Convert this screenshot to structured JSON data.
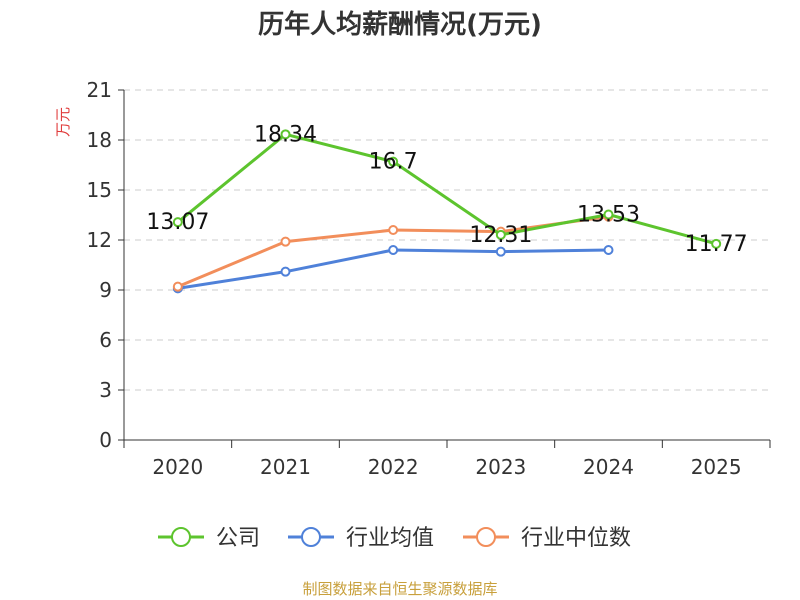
{
  "chart_data": {
    "type": "line",
    "title": "历年人均薪酬情况(万元)",
    "ylabel": "万元",
    "xlabel": "",
    "categories": [
      "2020",
      "2021",
      "2022",
      "2023",
      "2024",
      "2025"
    ],
    "ylim": [
      0,
      21
    ],
    "yticks": [
      0,
      3,
      6,
      9,
      12,
      15,
      18,
      21
    ],
    "grid": true,
    "legend_position": "bottom",
    "series": [
      {
        "name": "公司",
        "color": "#5dc42e",
        "values": [
          13.07,
          18.34,
          16.7,
          12.31,
          13.53,
          11.77
        ],
        "labels": [
          "13.07",
          "18.34",
          "16.7",
          "12.31",
          "13.53",
          "11.77"
        ]
      },
      {
        "name": "行业均值",
        "color": "#4f81d9",
        "values": [
          9.1,
          10.1,
          11.4,
          11.3,
          11.4,
          null
        ]
      },
      {
        "name": "行业中位数",
        "color": "#f28e5b",
        "values": [
          9.2,
          11.9,
          12.6,
          12.5,
          13.4,
          null
        ]
      }
    ]
  },
  "source_text": "制图数据来自恒生聚源数据库"
}
